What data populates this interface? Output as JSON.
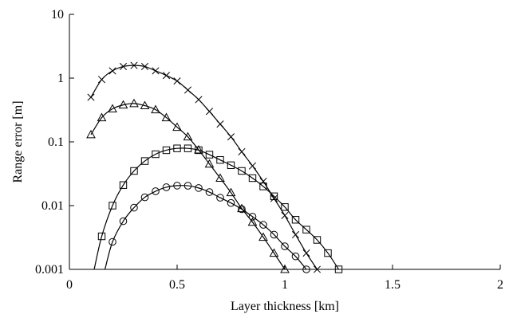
{
  "chart_data": {
    "type": "scatter",
    "title": "",
    "xlabel": "Layer thickness [km]",
    "ylabel": "Range error [m]",
    "xlim": [
      0,
      2
    ],
    "ylim": [
      0.001,
      10
    ],
    "yscale": "log",
    "grid": false,
    "x_ticks": [
      {
        "value": 0,
        "label": "0"
      },
      {
        "value": 0.5,
        "label": "0.5"
      },
      {
        "value": 1,
        "label": "1"
      },
      {
        "value": 1.5,
        "label": "1.5"
      },
      {
        "value": 2,
        "label": "2"
      }
    ],
    "y_ticks": [
      {
        "value": 0.001,
        "label": "0.001"
      },
      {
        "value": 0.01,
        "label": "0.01"
      },
      {
        "value": 0.1,
        "label": "0.1"
      },
      {
        "value": 1,
        "label": "1"
      },
      {
        "value": 10,
        "label": "10"
      }
    ],
    "series": [
      {
        "marker": "x",
        "color": "#000000",
        "points": [
          [
            0.1,
            0.5
          ],
          [
            0.15,
            0.95
          ],
          [
            0.2,
            1.3
          ],
          [
            0.25,
            1.52
          ],
          [
            0.3,
            1.58
          ],
          [
            0.35,
            1.52
          ],
          [
            0.4,
            1.3
          ],
          [
            0.45,
            1.1
          ],
          [
            0.5,
            0.9
          ],
          [
            0.55,
            0.65
          ],
          [
            0.6,
            0.46
          ],
          [
            0.65,
            0.3
          ],
          [
            0.7,
            0.19
          ],
          [
            0.75,
            0.12
          ],
          [
            0.8,
            0.07
          ],
          [
            0.85,
            0.042
          ],
          [
            0.9,
            0.024
          ],
          [
            0.95,
            0.013
          ],
          [
            1.0,
            0.007
          ],
          [
            1.05,
            0.0035
          ],
          [
            1.1,
            0.0018
          ],
          [
            1.15,
            0.001
          ]
        ],
        "curve": [
          [
            0.1,
            0.5
          ],
          [
            0.15,
            0.95
          ],
          [
            0.2,
            1.3
          ],
          [
            0.25,
            1.52
          ],
          [
            0.3,
            1.58
          ],
          [
            0.35,
            1.52
          ],
          [
            0.4,
            1.3
          ],
          [
            0.45,
            1.1
          ],
          [
            0.5,
            0.9
          ],
          [
            0.55,
            0.65
          ],
          [
            0.6,
            0.46
          ],
          [
            0.65,
            0.3
          ],
          [
            0.7,
            0.19
          ],
          [
            0.75,
            0.12
          ],
          [
            0.8,
            0.07
          ],
          [
            0.85,
            0.042
          ],
          [
            0.9,
            0.024
          ],
          [
            0.95,
            0.013
          ],
          [
            1.0,
            0.007
          ],
          [
            1.05,
            0.0035
          ],
          [
            1.1,
            0.0018
          ],
          [
            1.15,
            0.001
          ]
        ]
      },
      {
        "marker": "triangle",
        "color": "#000000",
        "points": [
          [
            0.1,
            0.13
          ],
          [
            0.15,
            0.24
          ],
          [
            0.2,
            0.33
          ],
          [
            0.25,
            0.38
          ],
          [
            0.3,
            0.4
          ],
          [
            0.35,
            0.37
          ],
          [
            0.4,
            0.32
          ],
          [
            0.45,
            0.24
          ],
          [
            0.5,
            0.17
          ],
          [
            0.55,
            0.12
          ],
          [
            0.6,
            0.075
          ],
          [
            0.65,
            0.045
          ],
          [
            0.7,
            0.027
          ],
          [
            0.75,
            0.016
          ],
          [
            0.8,
            0.009
          ],
          [
            0.85,
            0.0055
          ],
          [
            0.9,
            0.0032
          ],
          [
            0.95,
            0.0018
          ],
          [
            1.0,
            0.001
          ]
        ],
        "curve": [
          [
            0.1,
            0.13
          ],
          [
            0.15,
            0.24
          ],
          [
            0.2,
            0.33
          ],
          [
            0.25,
            0.38
          ],
          [
            0.3,
            0.4
          ],
          [
            0.35,
            0.37
          ],
          [
            0.4,
            0.32
          ],
          [
            0.45,
            0.24
          ],
          [
            0.5,
            0.17
          ],
          [
            0.55,
            0.12
          ],
          [
            0.6,
            0.075
          ],
          [
            0.65,
            0.045
          ],
          [
            0.7,
            0.027
          ],
          [
            0.75,
            0.016
          ],
          [
            0.8,
            0.009
          ],
          [
            0.85,
            0.0055
          ],
          [
            0.9,
            0.0032
          ],
          [
            0.95,
            0.0018
          ],
          [
            1.0,
            0.001
          ]
        ]
      },
      {
        "marker": "square",
        "color": "#000000",
        "points": [
          [
            0.15,
            0.0033
          ],
          [
            0.2,
            0.01
          ],
          [
            0.25,
            0.021
          ],
          [
            0.3,
            0.035
          ],
          [
            0.35,
            0.05
          ],
          [
            0.4,
            0.064
          ],
          [
            0.45,
            0.074
          ],
          [
            0.5,
            0.079
          ],
          [
            0.55,
            0.079
          ],
          [
            0.6,
            0.074
          ],
          [
            0.65,
            0.063
          ],
          [
            0.7,
            0.052
          ],
          [
            0.75,
            0.043
          ],
          [
            0.8,
            0.035
          ],
          [
            0.85,
            0.027
          ],
          [
            0.9,
            0.02
          ],
          [
            0.95,
            0.014
          ],
          [
            1.0,
            0.0095
          ],
          [
            1.05,
            0.006
          ],
          [
            1.1,
            0.0042
          ],
          [
            1.15,
            0.0029
          ],
          [
            1.2,
            0.0018
          ],
          [
            1.25,
            0.001
          ]
        ],
        "curve": [
          [
            0.115,
            0.001
          ],
          [
            0.15,
            0.0033
          ],
          [
            0.2,
            0.01
          ],
          [
            0.25,
            0.021
          ],
          [
            0.3,
            0.035
          ],
          [
            0.35,
            0.05
          ],
          [
            0.4,
            0.064
          ],
          [
            0.45,
            0.074
          ],
          [
            0.5,
            0.079
          ],
          [
            0.55,
            0.079
          ],
          [
            0.6,
            0.074
          ],
          [
            0.65,
            0.063
          ],
          [
            0.7,
            0.052
          ],
          [
            0.75,
            0.043
          ],
          [
            0.8,
            0.035
          ],
          [
            0.85,
            0.027
          ],
          [
            0.9,
            0.02
          ],
          [
            0.95,
            0.014
          ],
          [
            1.0,
            0.0095
          ],
          [
            1.05,
            0.006
          ],
          [
            1.1,
            0.0042
          ],
          [
            1.15,
            0.0029
          ],
          [
            1.2,
            0.0018
          ],
          [
            1.25,
            0.001
          ]
        ]
      },
      {
        "marker": "circle",
        "color": "#000000",
        "points": [
          [
            0.2,
            0.0027
          ],
          [
            0.25,
            0.0057
          ],
          [
            0.3,
            0.0093
          ],
          [
            0.35,
            0.0135
          ],
          [
            0.4,
            0.0168
          ],
          [
            0.45,
            0.0194
          ],
          [
            0.5,
            0.0206
          ],
          [
            0.55,
            0.0205
          ],
          [
            0.6,
            0.0189
          ],
          [
            0.65,
            0.0163
          ],
          [
            0.7,
            0.0133
          ],
          [
            0.75,
            0.011
          ],
          [
            0.8,
            0.0088
          ],
          [
            0.85,
            0.0067
          ],
          [
            0.9,
            0.005
          ],
          [
            0.95,
            0.0035
          ],
          [
            1.0,
            0.0023
          ],
          [
            1.05,
            0.0016
          ],
          [
            1.1,
            0.001
          ]
        ],
        "curve": [
          [
            0.165,
            0.001
          ],
          [
            0.2,
            0.0027
          ],
          [
            0.25,
            0.0057
          ],
          [
            0.3,
            0.0093
          ],
          [
            0.35,
            0.0135
          ],
          [
            0.4,
            0.0168
          ],
          [
            0.45,
            0.0194
          ],
          [
            0.5,
            0.0206
          ],
          [
            0.55,
            0.0205
          ],
          [
            0.6,
            0.0189
          ],
          [
            0.65,
            0.0163
          ],
          [
            0.7,
            0.0133
          ],
          [
            0.75,
            0.011
          ],
          [
            0.8,
            0.0088
          ],
          [
            0.85,
            0.0067
          ],
          [
            0.9,
            0.005
          ],
          [
            0.95,
            0.0035
          ],
          [
            1.0,
            0.0023
          ],
          [
            1.05,
            0.0016
          ],
          [
            1.1,
            0.001
          ]
        ]
      }
    ]
  }
}
